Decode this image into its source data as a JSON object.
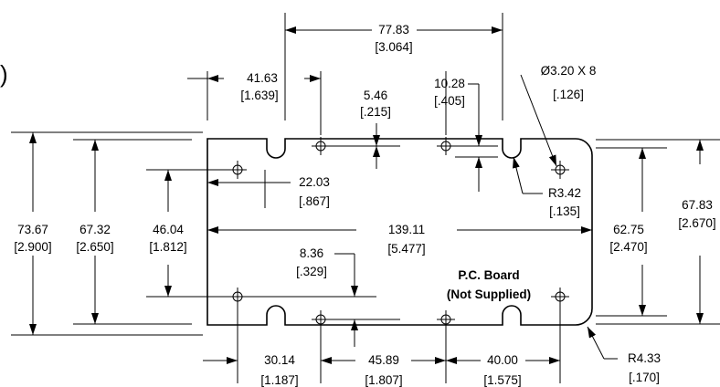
{
  "fragments": {
    "top_cut": "",
    "left_cut": ")"
  },
  "dims": {
    "overall_top_mm": "77.83",
    "overall_top_in": "[3.064]",
    "left_hole_mm": "41.63",
    "left_hole_in": "[1.639]",
    "notch_mm": "5.46",
    "notch_in": "[.215]",
    "notch2_mm": "10.28",
    "notch2_in": "[.405]",
    "hole_dia": "Ø3.20 X 8",
    "hole_dia_in": "[.126]",
    "left_outer_mm": "73.67",
    "left_outer_in": "[2.900]",
    "left_mid_mm": "67.32",
    "left_mid_in": "[2.650]",
    "left_inner_mm": "46.04",
    "left_inner_in": "[1.812]",
    "offset_mm": "22.03",
    "offset_in": "[.867]",
    "width_mm": "139.11",
    "width_in": "[5.477]",
    "lower_mm": "8.36",
    "lower_in": "[.329]",
    "r_corner_mm": "R3.42",
    "r_corner_in": "[.135]",
    "right_inner_mm": "62.75",
    "right_inner_in": "[2.470]",
    "right_outer_mm": "67.83",
    "right_outer_in": "[2.670]",
    "bot1_mm": "30.14",
    "bot1_in": "[1.187]",
    "bot2_mm": "45.89",
    "bot2_in": "[1.807]",
    "bot3_mm": "40.00",
    "bot3_in": "[1.575]",
    "r_big_mm": "R4.33",
    "r_big_in": "[.170]"
  },
  "board_label": {
    "line1": "P.C. Board",
    "line2": "(Not Supplied)"
  }
}
